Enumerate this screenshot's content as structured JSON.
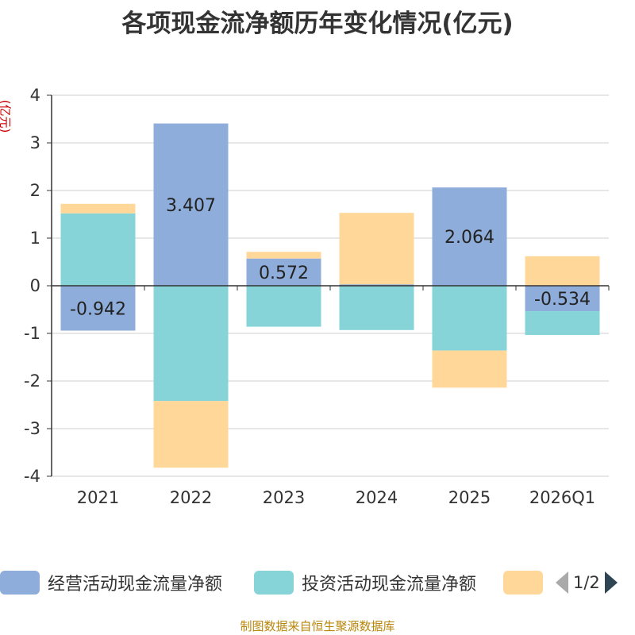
{
  "chart_data": {
    "type": "bar",
    "stacked": true,
    "title": "各项现金流净额历年变化情况(亿元)",
    "ylabel": "(亿元)",
    "xlabel": "",
    "ylim": [
      -4,
      4
    ],
    "yticks": [
      4,
      3,
      2,
      1,
      0,
      -1,
      -2,
      -3,
      -4
    ],
    "categories": [
      "2021",
      "2022",
      "2023",
      "2024",
      "2025",
      "2026Q1"
    ],
    "series": [
      {
        "name": "经营活动现金流量净额",
        "color": "#8eadda",
        "values": [
          -0.942,
          3.407,
          0.572,
          0.03,
          2.064,
          -0.534
        ]
      },
      {
        "name": "投资活动现金流量净额",
        "color": "#86d4d8",
        "values": [
          1.52,
          -2.42,
          -0.86,
          -0.93,
          -1.36,
          -0.5
        ]
      },
      {
        "name": "",
        "color": "#ffd899",
        "values": [
          0.2,
          -1.4,
          0.14,
          1.5,
          -0.78,
          0.62
        ]
      }
    ],
    "data_labels": [
      "-0.942",
      "3.407",
      "0.572",
      "",
      "2.064",
      "-0.534"
    ],
    "legend_position": "bottom"
  },
  "legend": {
    "pager": "1/2"
  },
  "source": "制图数据来自恒生聚源数据库"
}
